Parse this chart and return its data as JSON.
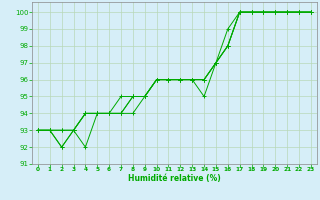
{
  "xlabel": "Humidité relative (%)",
  "background_color": "#d6eef8",
  "line_color": "#00aa00",
  "grid_color": "#b8d8b8",
  "xlim": [
    -0.5,
    23.5
  ],
  "ylim": [
    91,
    100.6
  ],
  "yticks": [
    91,
    92,
    93,
    94,
    95,
    96,
    97,
    98,
    99,
    100
  ],
  "xticks": [
    0,
    1,
    2,
    3,
    4,
    5,
    6,
    7,
    8,
    9,
    10,
    11,
    12,
    13,
    14,
    15,
    16,
    17,
    18,
    19,
    20,
    21,
    22,
    23
  ],
  "series": [
    [
      93,
      93,
      92,
      93,
      94,
      94,
      94,
      94,
      95,
      95,
      96,
      96,
      96,
      96,
      96,
      97,
      99,
      100,
      100,
      100,
      100,
      100,
      100,
      100
    ],
    [
      93,
      93,
      92,
      93,
      92,
      94,
      94,
      94,
      94,
      95,
      96,
      96,
      96,
      96,
      95,
      97,
      98,
      100,
      100,
      100,
      100,
      100,
      100,
      100
    ],
    [
      93,
      93,
      93,
      93,
      94,
      94,
      94,
      94,
      95,
      95,
      96,
      96,
      96,
      96,
      96,
      97,
      98,
      100,
      100,
      100,
      100,
      100,
      100,
      100
    ],
    [
      93,
      93,
      93,
      93,
      94,
      94,
      94,
      95,
      95,
      95,
      96,
      96,
      96,
      96,
      96,
      97,
      98,
      100,
      100,
      100,
      100,
      100,
      100,
      100
    ]
  ]
}
